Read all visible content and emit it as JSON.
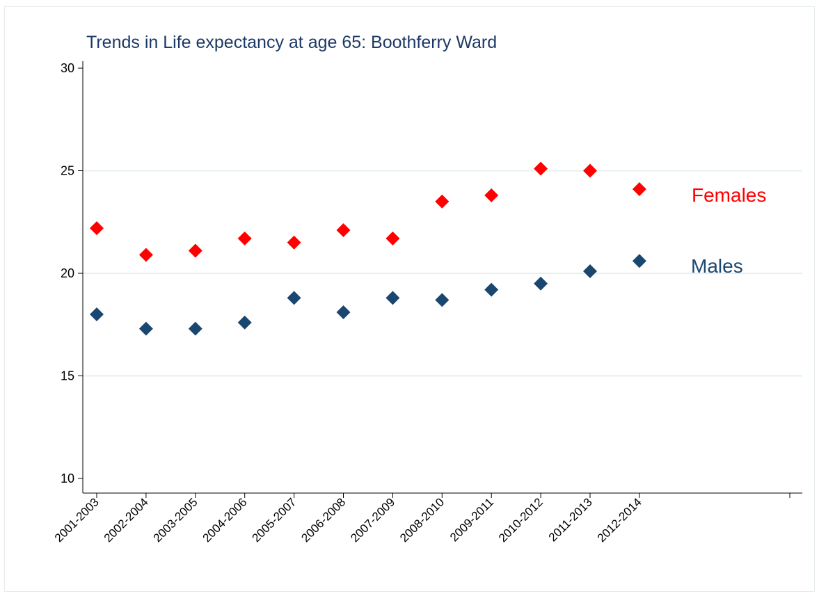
{
  "chart_data": {
    "type": "scatter",
    "title": "Trends in Life expectancy at age 65: Boothferry Ward",
    "xlabel": "",
    "ylabel": "",
    "ylim": [
      10,
      30
    ],
    "yticks": [
      "10",
      "15",
      "20",
      "25",
      "30"
    ],
    "categories": [
      "2001-2003",
      "2002-2004",
      "2003-2005",
      "2004-2006",
      "2005-2007",
      "2006-2008",
      "2007-2009",
      "2008-2010",
      "2009-2011",
      "2010-2012",
      "2011-2013",
      "2012-2014"
    ],
    "grid": true,
    "series": [
      {
        "name": "Females",
        "color": "#ff0000",
        "marker": "diamond",
        "values": [
          22.2,
          20.9,
          21.1,
          21.7,
          21.5,
          22.1,
          21.7,
          23.5,
          23.8,
          25.1,
          25.0,
          24.1
        ]
      },
      {
        "name": "Males",
        "color": "#1a476f",
        "marker": "diamond",
        "values": [
          18.0,
          17.3,
          17.3,
          17.6,
          18.8,
          18.1,
          18.8,
          18.7,
          19.2,
          19.5,
          20.1,
          20.6
        ]
      }
    ]
  }
}
